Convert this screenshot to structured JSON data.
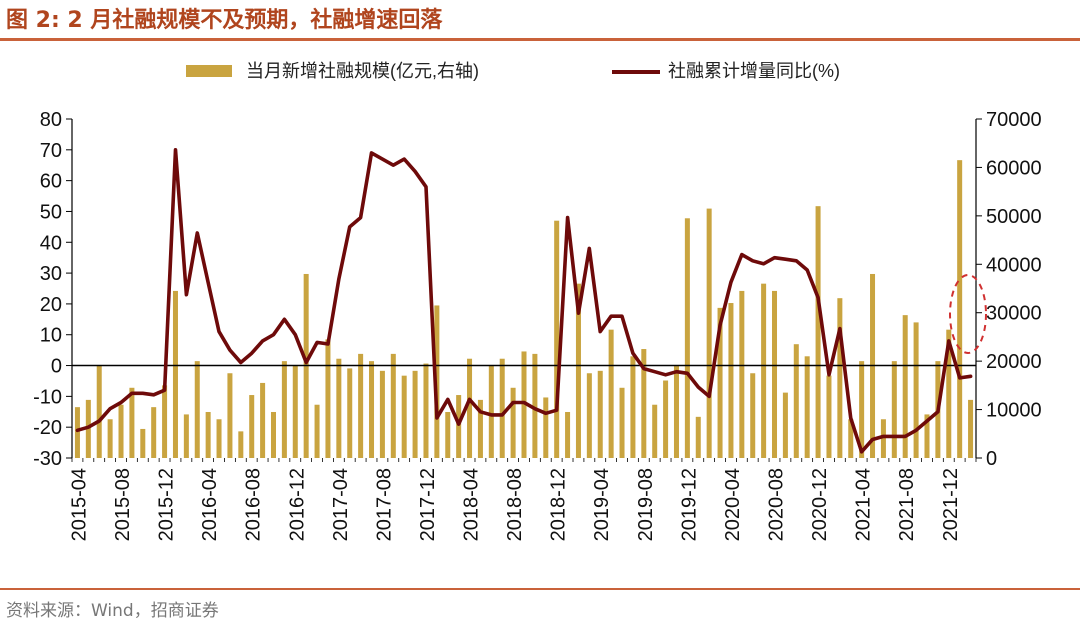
{
  "header": {
    "title": "图 2:  2 月社融规模不及预期，社融增速回落"
  },
  "footer": {
    "source": "资料来源：Wind，招商证券"
  },
  "colors": {
    "bar": "#C9A440",
    "line": "#6E0A0A",
    "accent": "#C0392B"
  },
  "chart_data": {
    "type": "bar+line",
    "x_tick_labels": [
      "2015-04",
      "2015-08",
      "2015-12",
      "2016-04",
      "2016-08",
      "2016-12",
      "2017-04",
      "2017-08",
      "2017-12",
      "2018-04",
      "2018-08",
      "2018-12",
      "2019-04",
      "2019-08",
      "2019-12",
      "2020-04",
      "2020-08",
      "2020-12",
      "2021-04",
      "2021-08",
      "2021-12"
    ],
    "y_left": {
      "min": -30,
      "max": 80,
      "ticks": [
        "-30",
        "-20",
        "-10",
        "0",
        "10",
        "20",
        "30",
        "40",
        "50",
        "60",
        "70",
        "80"
      ]
    },
    "y_right": {
      "min": 0,
      "max": 70000,
      "ticks": [
        "0",
        "10000",
        "20000",
        "30000",
        "40000",
        "50000",
        "60000",
        "70000"
      ]
    },
    "legend": {
      "bar_label": "当月新增社融规模(亿元,右轴)",
      "line_label": "社融累计增量同比(%)",
      "placement": "top"
    },
    "series": [
      {
        "name": "当月新增社融规模(亿元,右轴)",
        "type": "bar",
        "axis": "right",
        "values": [
          10500,
          12000,
          19000,
          8000,
          11000,
          14500,
          6000,
          10500,
          15000,
          34500,
          9000,
          20000,
          9500,
          8000,
          17500,
          5500,
          13000,
          15500,
          9500,
          20000,
          19000,
          38000,
          11000,
          24500,
          20500,
          18500,
          21500,
          20000,
          18000,
          21500,
          17000,
          18000,
          19500,
          31500,
          9500,
          13000,
          20500,
          12000,
          19000,
          20500,
          14500,
          22000,
          21500,
          12500,
          49000,
          9500,
          36000,
          17500,
          18000,
          26500,
          14500,
          21000,
          22500,
          11000,
          16000,
          19000,
          49500,
          8500,
          51500,
          31000,
          32000,
          34500,
          17500,
          36000,
          34500,
          13500,
          23500,
          21000,
          52000,
          17000,
          33000,
          8000,
          20000,
          38000,
          8000,
          20000,
          29500,
          28000,
          9000,
          20000,
          26500,
          61500,
          12000
        ]
      },
      {
        "name": "社融累计增量同比(%)",
        "type": "line",
        "axis": "left",
        "values": [
          -21,
          -20,
          -18,
          -14,
          -12,
          -9,
          -9,
          -9.5,
          -8,
          70,
          23,
          43,
          27,
          11,
          5,
          1,
          4,
          8,
          10,
          15,
          10,
          1,
          7.5,
          7,
          28,
          45,
          48,
          69,
          67,
          65,
          67,
          63,
          58,
          -17,
          -11,
          -19,
          -11,
          -15,
          -16,
          -16,
          -12,
          -12,
          -14,
          -15.5,
          -14.5,
          48,
          17,
          38,
          11,
          16,
          16,
          4,
          -1,
          -2,
          -3,
          -2,
          -2.5,
          -7,
          -10,
          13,
          27,
          36,
          34,
          33,
          35,
          34.5,
          34,
          31,
          22,
          -3,
          12,
          -17,
          -28,
          -24,
          -23,
          -23,
          -23,
          -21,
          -18,
          -15,
          8,
          -4,
          -3.5
        ]
      }
    ],
    "annotation": {
      "type": "dashed-ellipse",
      "label": ""
    }
  }
}
